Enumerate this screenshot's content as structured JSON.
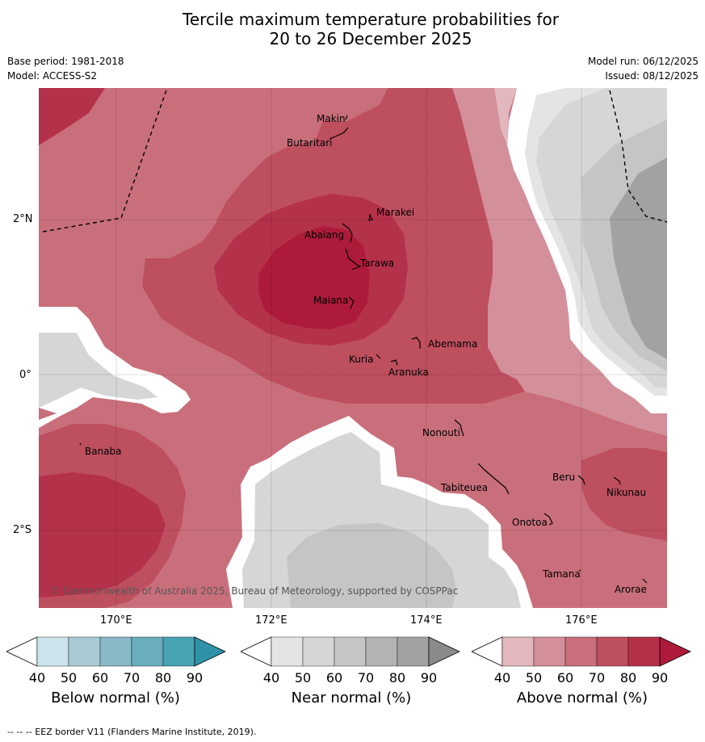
{
  "title_line1": "Tercile maximum temperature probabilities for",
  "title_line2": "20 to 26 December 2025",
  "base_period": "Base period: 1981-2018",
  "model": "Model: ACCESS-S2",
  "model_run": "Model run: 06/12/2025",
  "issued": "Issued: 08/12/2025",
  "copyright": "© Commonwealth of Australia 2025, Bureau of Meteorology, supported by COSPPac",
  "footer": "--  --  -- EEZ border V11 (Flanders Marine Institute, 2019).",
  "axes": {
    "lon_labels": [
      "170°E",
      "172°E",
      "174°E",
      "176°E"
    ],
    "lat_labels": [
      "2°N",
      "0°",
      "2°S"
    ]
  },
  "places": [
    "Makin",
    "Butaritari",
    "Marakei",
    "Abaiang",
    "Tarawa",
    "Maiana",
    "Abemama",
    "Kuria",
    "Aranuka",
    "Nonouti",
    "Banaba",
    "Tabiteuea",
    "Beru",
    "Nikunau",
    "Onotoa",
    "Tamana",
    "Arorae"
  ],
  "colorbars": [
    {
      "title": "Below normal (%)",
      "ticks": [
        "40",
        "50",
        "60",
        "70",
        "80",
        "90"
      ],
      "colors": [
        "#ffffff",
        "#cbe3ea",
        "#a9cbd4",
        "#8ab9c6",
        "#6aadbd",
        "#48a3b3",
        "#2e93a8"
      ]
    },
    {
      "title": "Near normal (%)",
      "ticks": [
        "40",
        "50",
        "60",
        "70",
        "80",
        "90"
      ],
      "colors": [
        "#ffffff",
        "#e4e4e4",
        "#d6d6d6",
        "#c5c5c5",
        "#b3b3b3",
        "#a2a2a2",
        "#8a8a8a"
      ]
    },
    {
      "title": "Above normal (%)",
      "ticks": [
        "40",
        "50",
        "60",
        "70",
        "80",
        "90"
      ],
      "colors": [
        "#ffffff",
        "#e2b7bd",
        "#d4909a",
        "#c96f7b",
        "#be4f5e",
        "#b4314a",
        "#ae1a3a"
      ]
    }
  ],
  "chart_data": {
    "type": "map",
    "title": "Tercile maximum temperature probabilities for 20 to 26 December 2025",
    "region": {
      "lon_range": [
        169.0,
        177.1
      ],
      "lat_range": [
        -3.0,
        3.7
      ]
    },
    "category_palette": {
      "above_50": "#e2b7bd",
      "above_50_60": "#d4909a",
      "above_60_70": "#c96f7b",
      "above_70_80": "#be4f5e",
      "above_80_90": "#b4314a",
      "above_90": "#ae1a3a",
      "near_40_50": "#e4e4e4",
      "near_50_60": "#d6d6d6",
      "near_60_70": "#c5c5c5",
      "near_70_80": "#a2a2a2"
    },
    "peak_above_normal_near": "Tarawa/Maiana (about 80-90%)",
    "near_normal_regions": [
      "east of 175.5°E north of equator",
      "south-central around 172.5-174.5°E, 1-3°S",
      "west edge near 169-170°E, equator"
    ]
  }
}
